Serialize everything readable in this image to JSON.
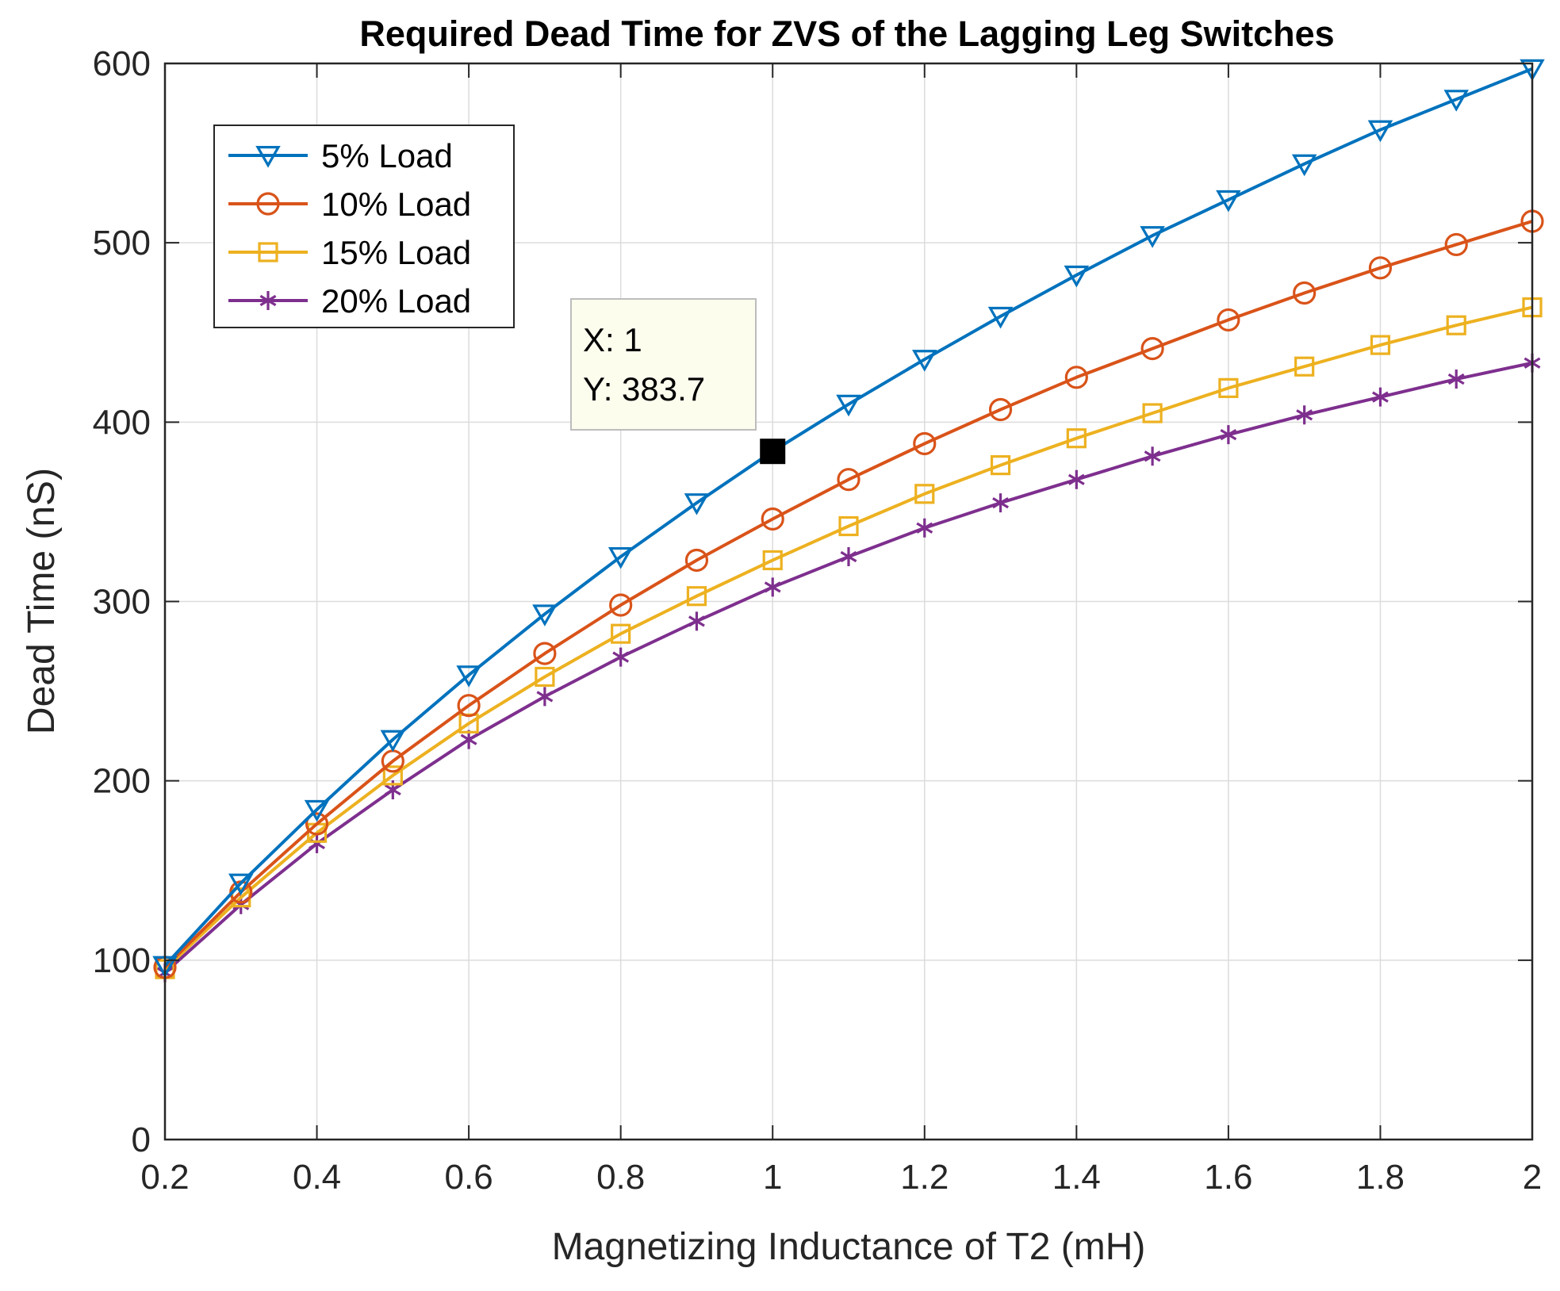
{
  "chart_data": {
    "type": "line",
    "title": "Required Dead Time for ZVS of the Lagging Leg Switches",
    "xlabel": "Magnetizing Inductance of T2 (mH)",
    "ylabel": "Dead Time (nS)",
    "xlim": [
      0.2,
      2
    ],
    "ylim": [
      0,
      600
    ],
    "xticks": [
      0.2,
      0.4,
      0.6,
      0.8,
      1,
      1.2,
      1.4,
      1.6,
      1.8,
      2
    ],
    "xtick_labels": [
      "0.2",
      "0.4",
      "0.6",
      "0.8",
      "1",
      "1.2",
      "1.4",
      "1.6",
      "1.8",
      "2"
    ],
    "yticks": [
      0,
      100,
      200,
      300,
      400,
      500,
      600
    ],
    "ytick_labels": [
      "0",
      "100",
      "200",
      "300",
      "400",
      "500",
      "600"
    ],
    "grid": true,
    "legend_position": "top-left",
    "x": [
      0.2,
      0.3,
      0.4,
      0.5,
      0.6,
      0.7,
      0.8,
      0.9,
      1.0,
      1.1,
      1.2,
      1.3,
      1.4,
      1.5,
      1.6,
      1.7,
      1.8,
      1.9,
      2.0
    ],
    "series": [
      {
        "name": "5% Load",
        "color": "#0072BD",
        "marker": "triangle-down",
        "values": [
          97,
          143,
          184,
          223,
          259,
          293,
          325,
          355,
          383.7,
          410,
          435,
          459,
          482,
          504,
          524,
          544,
          563,
          580,
          597
        ]
      },
      {
        "name": "10% Load",
        "color": "#D95319",
        "marker": "circle",
        "values": [
          96,
          138,
          176,
          211,
          242,
          271,
          298,
          323,
          346,
          368,
          388,
          407,
          425,
          441,
          457,
          472,
          486,
          499,
          512
        ]
      },
      {
        "name": "15% Load",
        "color": "#EDB120",
        "marker": "square",
        "values": [
          95,
          135,
          171,
          203,
          232,
          258,
          282,
          303,
          323,
          342,
          360,
          376,
          391,
          405,
          419,
          431,
          443,
          454,
          464
        ]
      },
      {
        "name": "20% Load",
        "color": "#7E2F8E",
        "marker": "asterisk",
        "values": [
          93,
          131,
          165,
          195,
          223,
          247,
          269,
          289,
          308,
          325,
          341,
          355,
          368,
          381,
          393,
          404,
          414,
          424,
          433
        ]
      }
    ],
    "datatip": {
      "x": 1,
      "y": 383.7,
      "x_text": "X: 1",
      "y_text": "Y: 383.7"
    }
  }
}
